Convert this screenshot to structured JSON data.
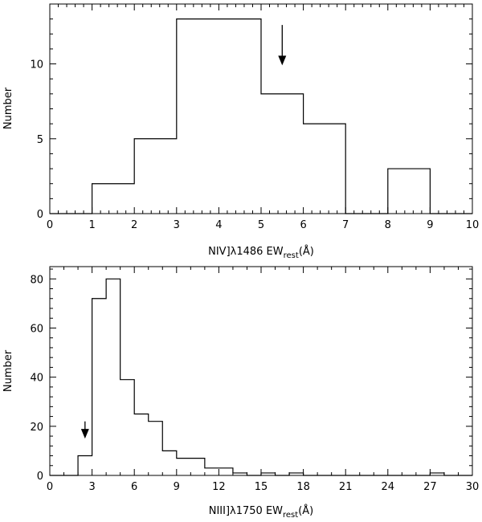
{
  "chart_data": [
    {
      "type": "histogram",
      "xlabel_parts": {
        "prefix": "NIV]λ1486 EW",
        "sub": "rest",
        "suffix": "(Å)"
      },
      "ylabel": "Number",
      "xlim": [
        0,
        10
      ],
      "ylim": [
        0,
        14
      ],
      "xticks": [
        0,
        1,
        2,
        3,
        4,
        5,
        6,
        7,
        8,
        9,
        10
      ],
      "yticks": [
        0,
        5,
        10
      ],
      "bin_edges": [
        0,
        1,
        2,
        3,
        4,
        5,
        6,
        7,
        8,
        9,
        10
      ],
      "counts": [
        0,
        2,
        5,
        13,
        13,
        8,
        6,
        0,
        3,
        0
      ],
      "arrow": {
        "x": 5.5,
        "y_top": 12.6,
        "y_tip": 9.9
      }
    },
    {
      "type": "histogram",
      "xlabel_parts": {
        "prefix": "NIII]λ1750 EW",
        "sub": "rest",
        "suffix": "(Å)"
      },
      "ylabel": "Number",
      "xlim": [
        0,
        30
      ],
      "ylim": [
        0,
        85
      ],
      "xticks": [
        0,
        3,
        6,
        9,
        12,
        15,
        18,
        21,
        24,
        27,
        30
      ],
      "yticks": [
        0,
        20,
        40,
        60,
        80
      ],
      "bin_edges": [
        0,
        1,
        2,
        3,
        4,
        5,
        6,
        7,
        8,
        9,
        10,
        11,
        12,
        13,
        14,
        15,
        16,
        17,
        18,
        19,
        20,
        21,
        22,
        23,
        24,
        25,
        26,
        27,
        28,
        29,
        30
      ],
      "counts": [
        0,
        0,
        8,
        72,
        80,
        39,
        25,
        22,
        10,
        7,
        7,
        3,
        3,
        1,
        0,
        1,
        0,
        1,
        0,
        0,
        0,
        0,
        0,
        0,
        0,
        0,
        0,
        1,
        0,
        0
      ],
      "arrow": {
        "x": 2.5,
        "y_top": 22,
        "y_tip": 15
      }
    }
  ]
}
